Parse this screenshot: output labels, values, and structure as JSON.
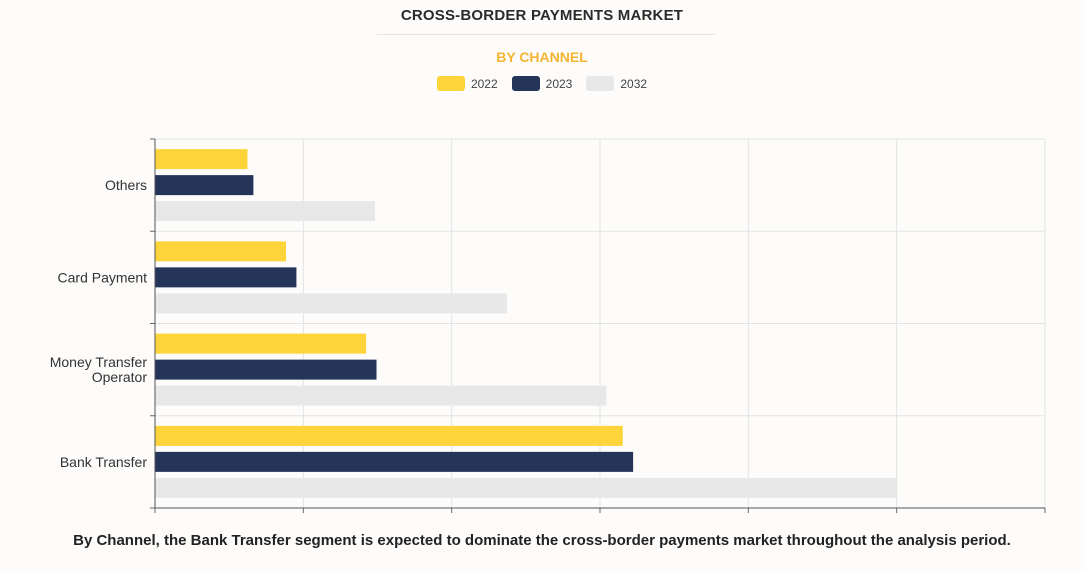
{
  "title": "CROSS-BORDER PAYMENTS MARKET",
  "subtitle": "BY CHANNEL",
  "caption": "By Channel, the Bank Transfer segment is expected to dominate the cross-border payments market throughout the analysis period.",
  "colors": {
    "2022": "#fdd43a",
    "2023": "#243559",
    "2032": "#e8e8e8",
    "subtitle": "#f5b530"
  },
  "chart_data": {
    "type": "bar",
    "orientation": "horizontal",
    "categories": [
      "Others",
      "Card Payment",
      "Money Transfer Operator",
      "Bank Transfer"
    ],
    "category_labels": [
      [
        "Others"
      ],
      [
        "Card Payment"
      ],
      [
        "Money Transfer",
        "Operator"
      ],
      [
        "Bank Transfer"
      ]
    ],
    "series": [
      {
        "name": "2022",
        "color": "#fdd43a",
        "values": [
          0.62,
          0.88,
          1.42,
          3.15
        ]
      },
      {
        "name": "2023",
        "color": "#243559",
        "values": [
          0.66,
          0.95,
          1.49,
          3.22
        ]
      },
      {
        "name": "2032",
        "color": "#e8e8e8",
        "values": [
          1.48,
          2.37,
          3.04,
          5.0
        ]
      }
    ],
    "xlim": [
      0,
      6
    ],
    "grid": true,
    "legend": "top-center",
    "xlabel": "",
    "ylabel": ""
  }
}
